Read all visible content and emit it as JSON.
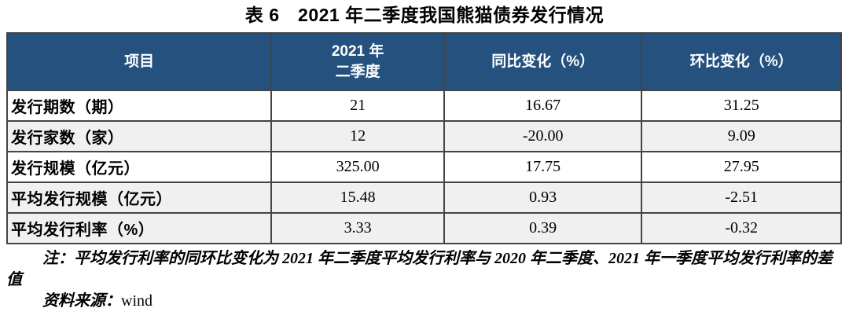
{
  "title": "表 6　2021 年二季度我国熊猫债券发行情况",
  "colors": {
    "header_bg": "#24517e",
    "header_text": "#ffffff",
    "alt_row_bg": "#f0f0f0",
    "border": "#444444"
  },
  "table": {
    "header": {
      "item": "项目",
      "period_line1": "2021 年",
      "period_line2": "二季度",
      "yoy": "同比变化（%）",
      "qoq": "环比变化（%）"
    },
    "rows": [
      {
        "label": "发行期数（期）",
        "value": "21",
        "yoy": "16.67",
        "qoq": "31.25"
      },
      {
        "label": "发行家数（家）",
        "value": "12",
        "yoy": "-20.00",
        "qoq": "9.09"
      },
      {
        "label": "发行规模（亿元）",
        "value": "325.00",
        "yoy": "17.75",
        "qoq": "27.95"
      },
      {
        "label": "平均发行规模（亿元）",
        "value": "15.48",
        "yoy": "0.93",
        "qoq": "-2.51"
      },
      {
        "label": "平均发行利率（%）",
        "value": "3.33",
        "yoy": "0.39",
        "qoq": "-0.32"
      }
    ]
  },
  "notes": {
    "note_label": "注：",
    "note_text": "平均发行利率的同环比变化为 2021 年二季度平均发行利率与 2020 年二季度、2021 年一季度平均发行利率的差值",
    "source_label": "资料来源：",
    "source_value": "wind"
  }
}
